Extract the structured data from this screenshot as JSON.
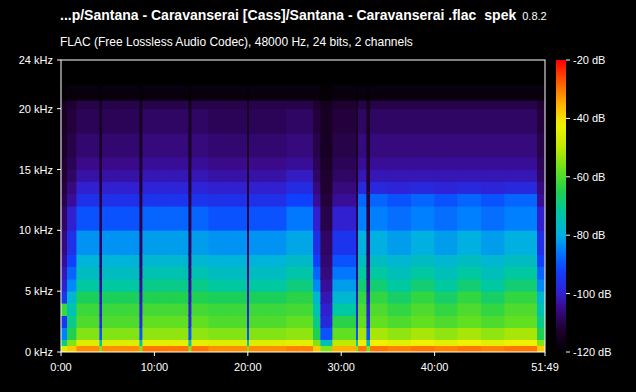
{
  "chart_data": {
    "type": "heatmap",
    "title": "...p/Santana - Caravanserai [Cass]/Santana - Caravanserai .flac",
    "app_name": "spek",
    "app_version": "0.8.2",
    "subtitle": "FLAC (Free Lossless Audio Codec), 48000 Hz, 24 bits, 2 channels",
    "xlim": [
      0,
      3109
    ],
    "ylim": [
      0,
      24
    ],
    "xticks": [
      {
        "value": 0,
        "label": "0:00"
      },
      {
        "value": 600,
        "label": "10:00"
      },
      {
        "value": 1200,
        "label": "20:00"
      },
      {
        "value": 1800,
        "label": "30:00"
      },
      {
        "value": 2400,
        "label": "40:00"
      },
      {
        "value": 3109,
        "label": "51:49"
      }
    ],
    "yticks": [
      {
        "value": 0,
        "label": "0 kHz"
      },
      {
        "value": 5,
        "label": "5 kHz"
      },
      {
        "value": 10,
        "label": "10 kHz"
      },
      {
        "value": 15,
        "label": "15 kHz"
      },
      {
        "value": 20,
        "label": "20 kHz"
      },
      {
        "value": 24,
        "label": "24 kHz"
      }
    ],
    "grid": false,
    "x_bins": [
      0,
      40,
      100,
      180,
      250,
      265,
      340,
      420,
      505,
      525,
      600,
      700,
      820,
      840,
      950,
      1080,
      1195,
      1210,
      1320,
      1450,
      1560,
      1620,
      1670,
      1745,
      1810,
      1895,
      1910,
      1965,
      1985,
      2100,
      2250,
      2400,
      2550,
      2700,
      2850,
      3000,
      3060,
      3109
    ],
    "y_bins": [
      0,
      0.5,
      1,
      2,
      3,
      4,
      5,
      6,
      7,
      8,
      10,
      12,
      13,
      14,
      15,
      16,
      18,
      20,
      20.7,
      22,
      24
    ],
    "values": [
      [
        -45,
        -70,
        -85,
        -95,
        -62,
        -95,
        -100,
        -102,
        -104,
        -106,
        -108,
        -110,
        -111,
        -112,
        -112,
        -113,
        -114,
        -114,
        -119,
        -120
      ],
      [
        -38,
        -55,
        -65,
        -70,
        -74,
        -78,
        -84,
        -88,
        -92,
        -96,
        -100,
        -104,
        -106,
        -108,
        -109,
        -110,
        -111,
        -112,
        -118,
        -120
      ],
      [
        -32,
        -45,
        -55,
        -60,
        -62,
        -66,
        -72,
        -76,
        -79,
        -83,
        -90,
        -96,
        -100,
        -103,
        -105,
        -107,
        -109,
        -110,
        -118,
        -120
      ],
      [
        -32,
        -45,
        -55,
        -60,
        -62,
        -66,
        -72,
        -76,
        -79,
        -83,
        -90,
        -96,
        -100,
        -103,
        -105,
        -107,
        -109,
        -110,
        -118,
        -120
      ],
      [
        -55,
        -75,
        -90,
        -98,
        -100,
        -102,
        -104,
        -106,
        -107,
        -108,
        -110,
        -111,
        -112,
        -112,
        -113,
        -114,
        -114,
        -115,
        -119,
        -120
      ],
      [
        -32,
        -45,
        -55,
        -60,
        -62,
        -66,
        -72,
        -76,
        -79,
        -83,
        -90,
        -96,
        -100,
        -103,
        -105,
        -107,
        -109,
        -110,
        -118,
        -120
      ],
      [
        -32,
        -45,
        -55,
        -60,
        -62,
        -66,
        -72,
        -76,
        -79,
        -83,
        -90,
        -96,
        -100,
        -103,
        -105,
        -107,
        -109,
        -110,
        -118,
        -120
      ],
      [
        -32,
        -45,
        -55,
        -60,
        -62,
        -66,
        -72,
        -76,
        -79,
        -83,
        -90,
        -96,
        -100,
        -103,
        -105,
        -107,
        -109,
        -110,
        -118,
        -120
      ],
      [
        -55,
        -75,
        -90,
        -98,
        -100,
        -102,
        -104,
        -106,
        -107,
        -108,
        -110,
        -111,
        -112,
        -112,
        -113,
        -114,
        -114,
        -115,
        -119,
        -120
      ],
      [
        -30,
        -44,
        -54,
        -58,
        -61,
        -65,
        -70,
        -74,
        -78,
        -82,
        -88,
        -95,
        -99,
        -102,
        -104,
        -106,
        -108,
        -110,
        -118,
        -120
      ],
      [
        -30,
        -44,
        -54,
        -58,
        -61,
        -65,
        -70,
        -74,
        -78,
        -82,
        -88,
        -95,
        -99,
        -102,
        -104,
        -106,
        -108,
        -110,
        -118,
        -120
      ],
      [
        -30,
        -44,
        -54,
        -58,
        -61,
        -65,
        -70,
        -74,
        -78,
        -82,
        -88,
        -95,
        -99,
        -102,
        -104,
        -106,
        -108,
        -110,
        -118,
        -120
      ],
      [
        -55,
        -75,
        -90,
        -98,
        -100,
        -102,
        -104,
        -106,
        -107,
        -108,
        -110,
        -111,
        -112,
        -112,
        -113,
        -114,
        -114,
        -115,
        -119,
        -120
      ],
      [
        -30,
        -44,
        -54,
        -58,
        -61,
        -65,
        -70,
        -74,
        -78,
        -82,
        -88,
        -95,
        -99,
        -102,
        -104,
        -106,
        -108,
        -110,
        -118,
        -120
      ],
      [
        -32,
        -45,
        -55,
        -60,
        -62,
        -66,
        -72,
        -76,
        -79,
        -83,
        -90,
        -96,
        -100,
        -103,
        -105,
        -107,
        -109,
        -110,
        -118,
        -120
      ],
      [
        -32,
        -45,
        -55,
        -60,
        -62,
        -66,
        -72,
        -76,
        -79,
        -83,
        -90,
        -96,
        -100,
        -103,
        -105,
        -107,
        -109,
        -110,
        -118,
        -120
      ],
      [
        -55,
        -75,
        -90,
        -98,
        -100,
        -102,
        -104,
        -106,
        -107,
        -108,
        -110,
        -111,
        -112,
        -112,
        -113,
        -114,
        -114,
        -115,
        -119,
        -120
      ],
      [
        -32,
        -45,
        -55,
        -60,
        -62,
        -66,
        -72,
        -76,
        -79,
        -83,
        -90,
        -96,
        -100,
        -103,
        -105,
        -107,
        -109,
        -110,
        -118,
        -120
      ],
      [
        -32,
        -45,
        -55,
        -60,
        -62,
        -66,
        -72,
        -76,
        -79,
        -83,
        -90,
        -96,
        -100,
        -103,
        -105,
        -107,
        -109,
        -110,
        -118,
        -120
      ],
      [
        -31,
        -44,
        -54,
        -58,
        -61,
        -64,
        -69,
        -73,
        -77,
        -81,
        -86,
        -92,
        -97,
        -101,
        -104,
        -106,
        -108,
        -110,
        -118,
        -120
      ],
      [
        -31,
        -44,
        -54,
        -58,
        -61,
        -64,
        -69,
        -73,
        -77,
        -81,
        -86,
        -92,
        -97,
        -101,
        -104,
        -106,
        -108,
        -110,
        -118,
        -120
      ],
      [
        -38,
        -55,
        -65,
        -70,
        -74,
        -78,
        -84,
        -88,
        -92,
        -96,
        -100,
        -104,
        -106,
        -108,
        -109,
        -110,
        -111,
        -112,
        -118,
        -120
      ],
      [
        -55,
        -75,
        -90,
        -98,
        -100,
        -102,
        -104,
        -106,
        -107,
        -108,
        -110,
        -111,
        -112,
        -112,
        -113,
        -114,
        -114,
        -115,
        -119,
        -120
      ],
      [
        -35,
        -50,
        -58,
        -64,
        -72,
        -78,
        -82,
        -86,
        -90,
        -95,
        -100,
        -104,
        -106,
        -108,
        -109,
        -110,
        -111,
        -112,
        -118,
        -120
      ],
      [
        -35,
        -50,
        -58,
        -64,
        -72,
        -78,
        -82,
        -86,
        -90,
        -95,
        -100,
        -104,
        -106,
        -108,
        -109,
        -110,
        -111,
        -112,
        -118,
        -120
      ],
      [
        -55,
        -75,
        -90,
        -98,
        -100,
        -102,
        -104,
        -106,
        -107,
        -108,
        -110,
        -111,
        -112,
        -112,
        -113,
        -114,
        -114,
        -115,
        -119,
        -120
      ],
      [
        -30,
        -42,
        -52,
        -58,
        -60,
        -63,
        -68,
        -72,
        -76,
        -80,
        -85,
        -88,
        -98,
        -102,
        -104,
        -106,
        -108,
        -110,
        -118,
        -120
      ],
      [
        -55,
        -75,
        -90,
        -98,
        -100,
        -102,
        -104,
        -106,
        -107,
        -108,
        -110,
        -111,
        -112,
        -112,
        -113,
        -114,
        -114,
        -115,
        -119,
        -120
      ],
      [
        -30,
        -42,
        -52,
        -58,
        -60,
        -63,
        -68,
        -72,
        -76,
        -80,
        -85,
        -88,
        -98,
        -102,
        -104,
        -106,
        -108,
        -110,
        -118,
        -120
      ],
      [
        -31,
        -44,
        -54,
        -60,
        -63,
        -67,
        -72,
        -75,
        -78,
        -82,
        -87,
        -90,
        -99,
        -102,
        -104,
        -106,
        -108,
        -110,
        -118,
        -120
      ],
      [
        -30,
        -42,
        -52,
        -58,
        -60,
        -63,
        -68,
        -72,
        -76,
        -80,
        -85,
        -88,
        -98,
        -102,
        -104,
        -106,
        -108,
        -110,
        -118,
        -120
      ],
      [
        -31,
        -44,
        -54,
        -60,
        -63,
        -67,
        -72,
        -75,
        -78,
        -82,
        -87,
        -90,
        -99,
        -102,
        -104,
        -106,
        -108,
        -110,
        -118,
        -120
      ],
      [
        -30,
        -42,
        -52,
        -58,
        -60,
        -63,
        -68,
        -72,
        -76,
        -80,
        -85,
        -88,
        -98,
        -102,
        -104,
        -106,
        -108,
        -110,
        -118,
        -120
      ],
      [
        -31,
        -44,
        -54,
        -60,
        -63,
        -67,
        -72,
        -75,
        -78,
        -82,
        -87,
        -90,
        -99,
        -102,
        -104,
        -106,
        -108,
        -110,
        -118,
        -120
      ],
      [
        -30,
        -42,
        -52,
        -58,
        -60,
        -63,
        -68,
        -72,
        -76,
        -80,
        -85,
        -88,
        -98,
        -102,
        -104,
        -106,
        -108,
        -110,
        -118,
        -120
      ],
      [
        -30,
        -42,
        -52,
        -58,
        -60,
        -63,
        -68,
        -72,
        -76,
        -80,
        -85,
        -88,
        -98,
        -102,
        -104,
        -106,
        -108,
        -110,
        -118,
        -120
      ],
      [
        -38,
        -55,
        -65,
        -70,
        -74,
        -78,
        -84,
        -88,
        -92,
        -96,
        -100,
        -104,
        -106,
        -108,
        -109,
        -110,
        -111,
        -112,
        -118,
        -120
      ]
    ],
    "colorbar": {
      "range": [
        -120,
        -20
      ],
      "ticks": [
        {
          "value": -20,
          "label": "-20 dB"
        },
        {
          "value": -40,
          "label": "-40 dB"
        },
        {
          "value": -60,
          "label": "-60 dB"
        },
        {
          "value": -80,
          "label": "-80 dB"
        },
        {
          "value": -100,
          "label": "-100 dB"
        },
        {
          "value": -120,
          "label": "-120 dB"
        }
      ]
    }
  }
}
